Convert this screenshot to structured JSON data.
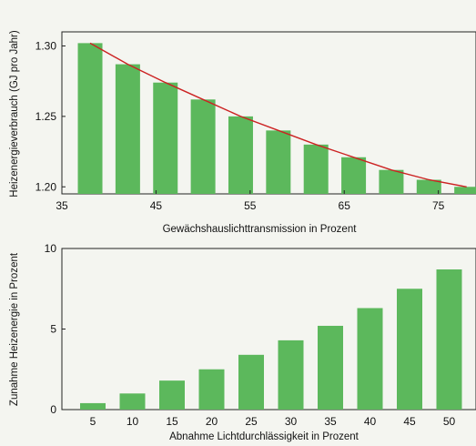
{
  "chart_data": [
    {
      "type": "bar",
      "title": "",
      "xlabel": "Gewächshauslichttransmission in Prozent",
      "ylabel": "Heizenergieverbrauch (GJ pro Jahr)",
      "x": [
        38,
        42,
        46,
        50,
        54,
        58,
        62,
        66,
        70,
        74,
        78
      ],
      "values": [
        1.302,
        1.287,
        1.274,
        1.262,
        1.25,
        1.24,
        1.23,
        1.221,
        1.212,
        1.205,
        1.2
      ],
      "xlim": [
        35,
        79
      ],
      "ylim": [
        1.195,
        1.31
      ],
      "xticks": [
        "35",
        "45",
        "55",
        "65",
        "75"
      ],
      "yticks": [
        "1.20",
        "1.25",
        "1.30"
      ],
      "trend_line": {
        "color": "#cc2222",
        "type": "fitted curve"
      },
      "grid": false,
      "bar_color": "#5cb85c"
    },
    {
      "type": "bar",
      "title": "",
      "xlabel": "Abnahme Lichtdurchlässigkeit in Prozent",
      "ylabel": "Zunahme Heizenergie in Prozent",
      "categories": [
        "5",
        "10",
        "15",
        "20",
        "25",
        "30",
        "35",
        "40",
        "45",
        "50"
      ],
      "values": [
        0.4,
        1.0,
        1.8,
        2.5,
        3.4,
        4.3,
        5.2,
        6.3,
        7.5,
        8.7
      ],
      "ylim": [
        0,
        10
      ],
      "yticks": [
        "0",
        "5",
        "10"
      ],
      "grid": false,
      "bar_color": "#5cb85c"
    }
  ]
}
